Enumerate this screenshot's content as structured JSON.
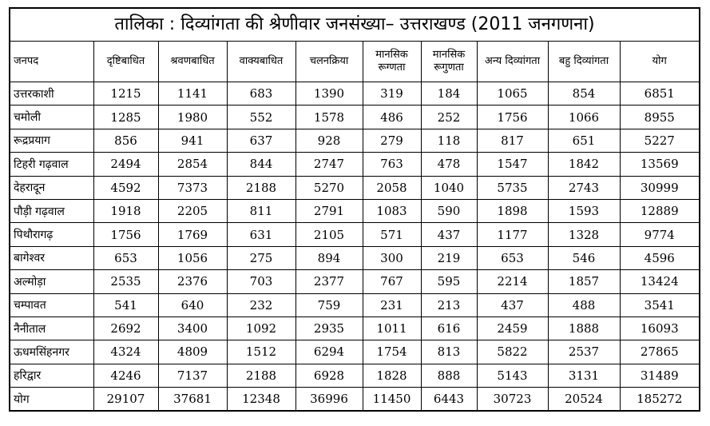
{
  "title": "तालिका : दिव्यांगता की श्रेणीवार जनसंख्या– उत्तराखण्ड (2011 जनगणना)",
  "columns": [
    "जनपद",
    "दृष्टिबाधित",
    "श्रवणबाधित",
    "वाक्यबाधित",
    "चलनक्रिया",
    "मानसिक रूग्णता",
    "मानसिक रूगुणता",
    "अन्य दिव्यांगता",
    "बहु दिव्यांगता",
    "योग"
  ],
  "rows": [
    [
      "उत्तरकाशी",
      "1215",
      "1141",
      "683",
      "1390",
      "319",
      "184",
      "1065",
      "854",
      "6851"
    ],
    [
      "चमोली",
      "1285",
      "1980",
      "552",
      "1578",
      "486",
      "252",
      "1756",
      "1066",
      "8955"
    ],
    [
      "रूद्रप्रयाग",
      "856",
      "941",
      "637",
      "928",
      "279",
      "118",
      "817",
      "651",
      "5227"
    ],
    [
      "टिहरी गढ़वाल",
      "2494",
      "2854",
      "844",
      "2747",
      "763",
      "478",
      "1547",
      "1842",
      "13569"
    ],
    [
      "देहरादून",
      "4592",
      "7373",
      "2188",
      "5270",
      "2058",
      "1040",
      "5735",
      "2743",
      "30999"
    ],
    [
      "पौड़ी गढ़वाल",
      "1918",
      "2205",
      "811",
      "2791",
      "1083",
      "590",
      "1898",
      "1593",
      "12889"
    ],
    [
      "पिथौरागढ़",
      "1756",
      "1769",
      "631",
      "2105",
      "571",
      "437",
      "1177",
      "1328",
      "9774"
    ],
    [
      "बागेश्वर",
      "653",
      "1056",
      "275",
      "894",
      "300",
      "219",
      "653",
      "546",
      "4596"
    ],
    [
      "अल्मोड़ा",
      "2535",
      "2376",
      "703",
      "2377",
      "767",
      "595",
      "2214",
      "1857",
      "13424"
    ],
    [
      "चम्पावत",
      "541",
      "640",
      "232",
      "759",
      "231",
      "213",
      "437",
      "488",
      "3541"
    ],
    [
      "नैनीताल",
      "2692",
      "3400",
      "1092",
      "2935",
      "1011",
      "616",
      "2459",
      "1888",
      "16093"
    ],
    [
      "ऊधमसिंहनगर",
      "4324",
      "4809",
      "1512",
      "6294",
      "1754",
      "813",
      "5822",
      "2537",
      "27865"
    ],
    [
      "हरिद्वार",
      "4246",
      "7137",
      "2188",
      "6928",
      "1828",
      "888",
      "5143",
      "3131",
      "31489"
    ],
    [
      "योग",
      "29107",
      "37681",
      "12348",
      "36996",
      "11450",
      "6443",
      "30723",
      "20524",
      "185272"
    ]
  ]
}
